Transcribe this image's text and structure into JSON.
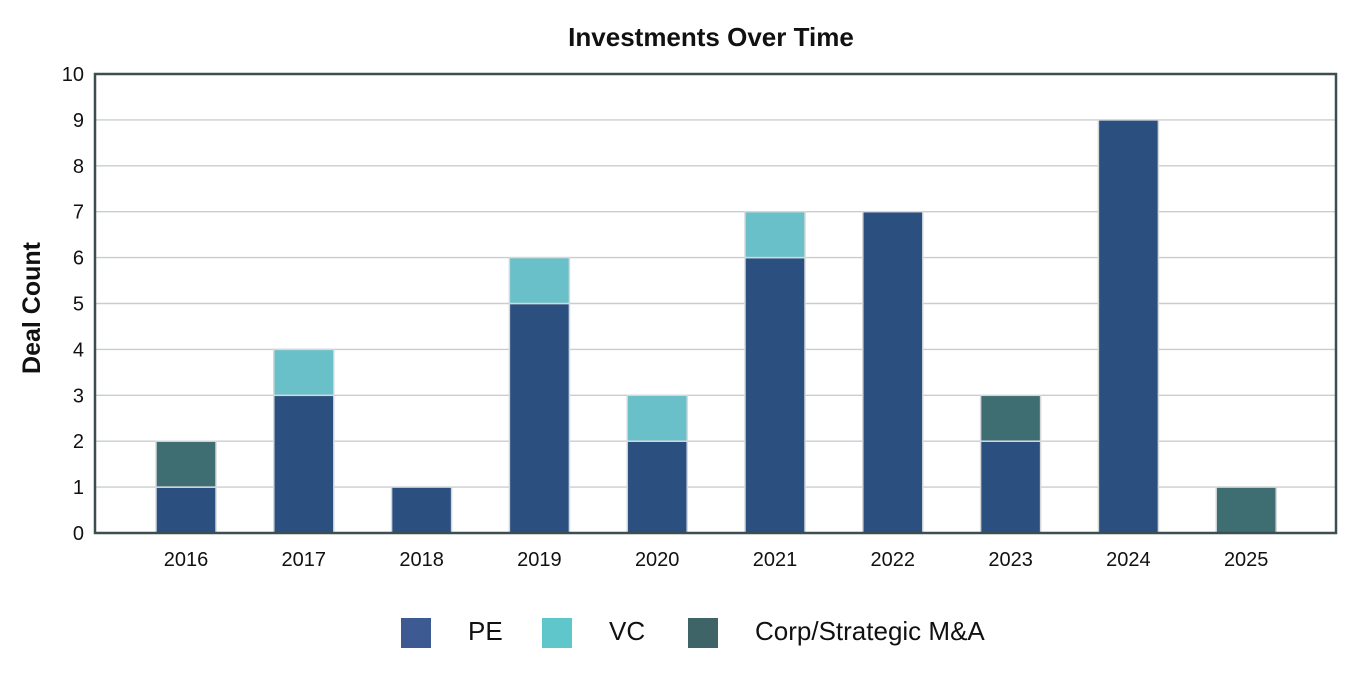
{
  "chart_data": {
    "type": "bar",
    "stacked": true,
    "title": "Investments Over Time",
    "xlabel": "",
    "ylabel": "Deal Count",
    "ylim": [
      0,
      10
    ],
    "yticks": [
      0,
      1,
      2,
      3,
      4,
      5,
      6,
      7,
      8,
      9,
      10
    ],
    "grid": true,
    "legend_position": "bottom",
    "categories": [
      "2016",
      "2017",
      "2018",
      "2019",
      "2020",
      "2021",
      "2022",
      "2023",
      "2024",
      "2025"
    ],
    "series": [
      {
        "name": "PE",
        "color": "#2b4f7e",
        "legend_color": "#3d5a92",
        "values": [
          1,
          3,
          1,
          5,
          2,
          6,
          7,
          2,
          9,
          0
        ]
      },
      {
        "name": "VC",
        "color": "#69c0c9",
        "legend_color": "#5fc6cc",
        "values": [
          0,
          1,
          0,
          1,
          1,
          1,
          0,
          0,
          0,
          0
        ]
      },
      {
        "name": "Corp/Strategic M&A",
        "color": "#3f6e72",
        "legend_color": "#3e6468",
        "values": [
          1,
          0,
          0,
          0,
          0,
          0,
          0,
          1,
          0,
          1
        ]
      }
    ]
  }
}
